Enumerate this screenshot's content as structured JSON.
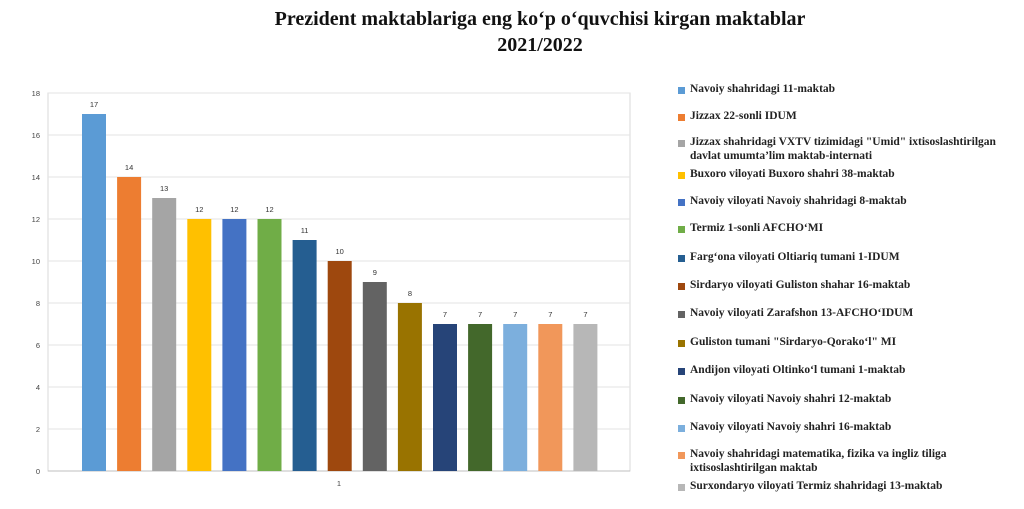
{
  "chart_data": {
    "type": "bar",
    "title": [
      "Prezident maktablariga eng ko‘p o‘quvchisi kirgan maktablar",
      "2021/2022"
    ],
    "categories": [
      "1"
    ],
    "ylim": [
      0,
      18
    ],
    "yticks": [
      0,
      2,
      4,
      6,
      8,
      10,
      12,
      14,
      16,
      18
    ],
    "grid": true,
    "legend_position": "right",
    "series": [
      {
        "name": "Navoiy shahridagi 11-maktab",
        "value": 17,
        "color": "#5B9BD5"
      },
      {
        "name": "Jizzax 22-sonli IDUM",
        "value": 14,
        "color": "#ED7D31"
      },
      {
        "name": "Jizzax shahridagi VXTV tizimidagi \"Umid\" ixtisoslashtirilgan davlat umumta’lim maktab-internati",
        "value": 13,
        "color": "#A5A5A5"
      },
      {
        "name": "Buxoro viloyati Buxoro shahri 38-maktab",
        "value": 12,
        "color": "#FFC000"
      },
      {
        "name": "Navoiy viloyati Navoiy shahridagi 8-maktab",
        "value": 12,
        "color": "#4472C4"
      },
      {
        "name": "Termiz 1-sonli AFCHO‘MI",
        "value": 12,
        "color": "#70AD47"
      },
      {
        "name": "Farg‘ona viloyati Oltiariq tumani 1-IDUM",
        "value": 11,
        "color": "#255E91"
      },
      {
        "name": "Sirdaryo viloyati Guliston shahar 16-maktab",
        "value": 10,
        "color": "#9E480E"
      },
      {
        "name": "Navoiy viloyati Zarafshon 13-AFCHO‘IDUM",
        "value": 9,
        "color": "#636363"
      },
      {
        "name": "Guliston tumani \"Sirdaryo-Qorako‘l\" MI",
        "value": 8,
        "color": "#997300"
      },
      {
        "name": "Andijon viloyati Oltinko‘l tumani 1-maktab",
        "value": 7,
        "color": "#264478"
      },
      {
        "name": "Navoiy viloyati Navoiy shahri 12-maktab",
        "value": 7,
        "color": "#43682B"
      },
      {
        "name": "Navoiy viloyati Navoiy shahri 16-maktab",
        "value": 7,
        "color": "#7CAFDD"
      },
      {
        "name": "Navoiy shahridagi matematika, fizika va ingliz tiliga ixtisoslashtirilgan maktab",
        "value": 7,
        "color": "#F1975A"
      },
      {
        "name": "Surxondaryo viloyati Termiz shahridagi 13-maktab",
        "value": 7,
        "color": "#B7B7B7"
      }
    ]
  }
}
